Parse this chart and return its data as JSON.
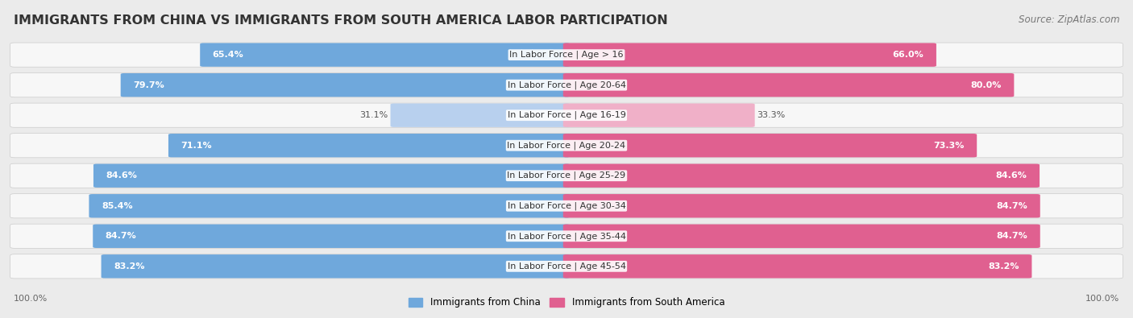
{
  "title": "IMMIGRANTS FROM CHINA VS IMMIGRANTS FROM SOUTH AMERICA LABOR PARTICIPATION",
  "source": "Source: ZipAtlas.com",
  "categories": [
    "In Labor Force | Age > 16",
    "In Labor Force | Age 20-64",
    "In Labor Force | Age 16-19",
    "In Labor Force | Age 20-24",
    "In Labor Force | Age 25-29",
    "In Labor Force | Age 30-34",
    "In Labor Force | Age 35-44",
    "In Labor Force | Age 45-54"
  ],
  "china_values": [
    65.4,
    79.7,
    31.1,
    71.1,
    84.6,
    85.4,
    84.7,
    83.2
  ],
  "south_america_values": [
    66.0,
    80.0,
    33.3,
    73.3,
    84.6,
    84.7,
    84.7,
    83.2
  ],
  "china_color": "#6fa8dc",
  "south_america_color": "#e06090",
  "china_color_light": "#b8d0ee",
  "south_america_color_light": "#f0b0c8",
  "background_color": "#ebebeb",
  "bar_bg_color": "#f7f7f7",
  "legend_china": "Immigrants from China",
  "legend_south_america": "Immigrants from South America",
  "title_fontsize": 11.5,
  "source_fontsize": 8.5,
  "label_fontsize": 8,
  "value_fontsize": 8
}
